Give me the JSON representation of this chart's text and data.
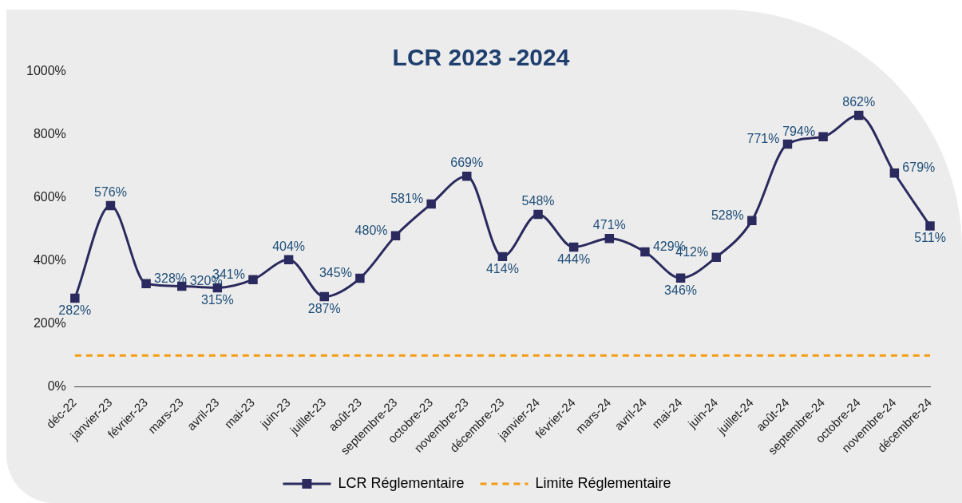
{
  "chart_data": {
    "type": "line",
    "title": "LCR 2023 -2024",
    "categories": [
      "déc-22",
      "janvier-23",
      "février-23",
      "mars-23",
      "avril-23",
      "mai-23",
      "juin-23",
      "juillet-23",
      "août-23",
      "septembre-23",
      "octobre-23",
      "novembre-23",
      "décembre-23",
      "janvier-24",
      "février-24",
      "mars-24",
      "avril-24",
      "mai-24",
      "juin-24",
      "juillet-24",
      "août-24",
      "septembre-24",
      "octobre-24",
      "novembre-24",
      "décembre-24"
    ],
    "series": [
      {
        "name": "LCR Réglementaire",
        "color": "#2b2a5e",
        "marker": "square",
        "line_style": "solid",
        "values": [
          282,
          576,
          328,
          320,
          315,
          341,
          404,
          287,
          345,
          480,
          581,
          669,
          414,
          548,
          444,
          471,
          429,
          346,
          412,
          528,
          771,
          794,
          862,
          679,
          511
        ],
        "value_labels": [
          "282%",
          "576%",
          "328%",
          "320%",
          "315%",
          "341%",
          "404%",
          "287%",
          "345%",
          "480%",
          "581%",
          "669%",
          "414%",
          "548%",
          "444%",
          "471%",
          "429%",
          "346%",
          "412%",
          "528%",
          "771%",
          "794%",
          "862%",
          "679%",
          "511%"
        ]
      },
      {
        "name": "Limite Réglementaire",
        "color": "#f39c12",
        "marker": "none",
        "line_style": "dashed",
        "values": [
          100,
          100,
          100,
          100,
          100,
          100,
          100,
          100,
          100,
          100,
          100,
          100,
          100,
          100,
          100,
          100,
          100,
          100,
          100,
          100,
          100,
          100,
          100,
          100,
          100
        ]
      }
    ],
    "ylim": [
      0,
      1000
    ],
    "yticks": [
      {
        "value": 0,
        "label": "0%"
      },
      {
        "value": 200,
        "label": "200%"
      },
      {
        "value": 400,
        "label": "400%"
      },
      {
        "value": 600,
        "label": "600%"
      },
      {
        "value": 800,
        "label": "800%"
      },
      {
        "value": 1000,
        "label": "1000%"
      }
    ],
    "grid": false,
    "legend": "bottom"
  }
}
